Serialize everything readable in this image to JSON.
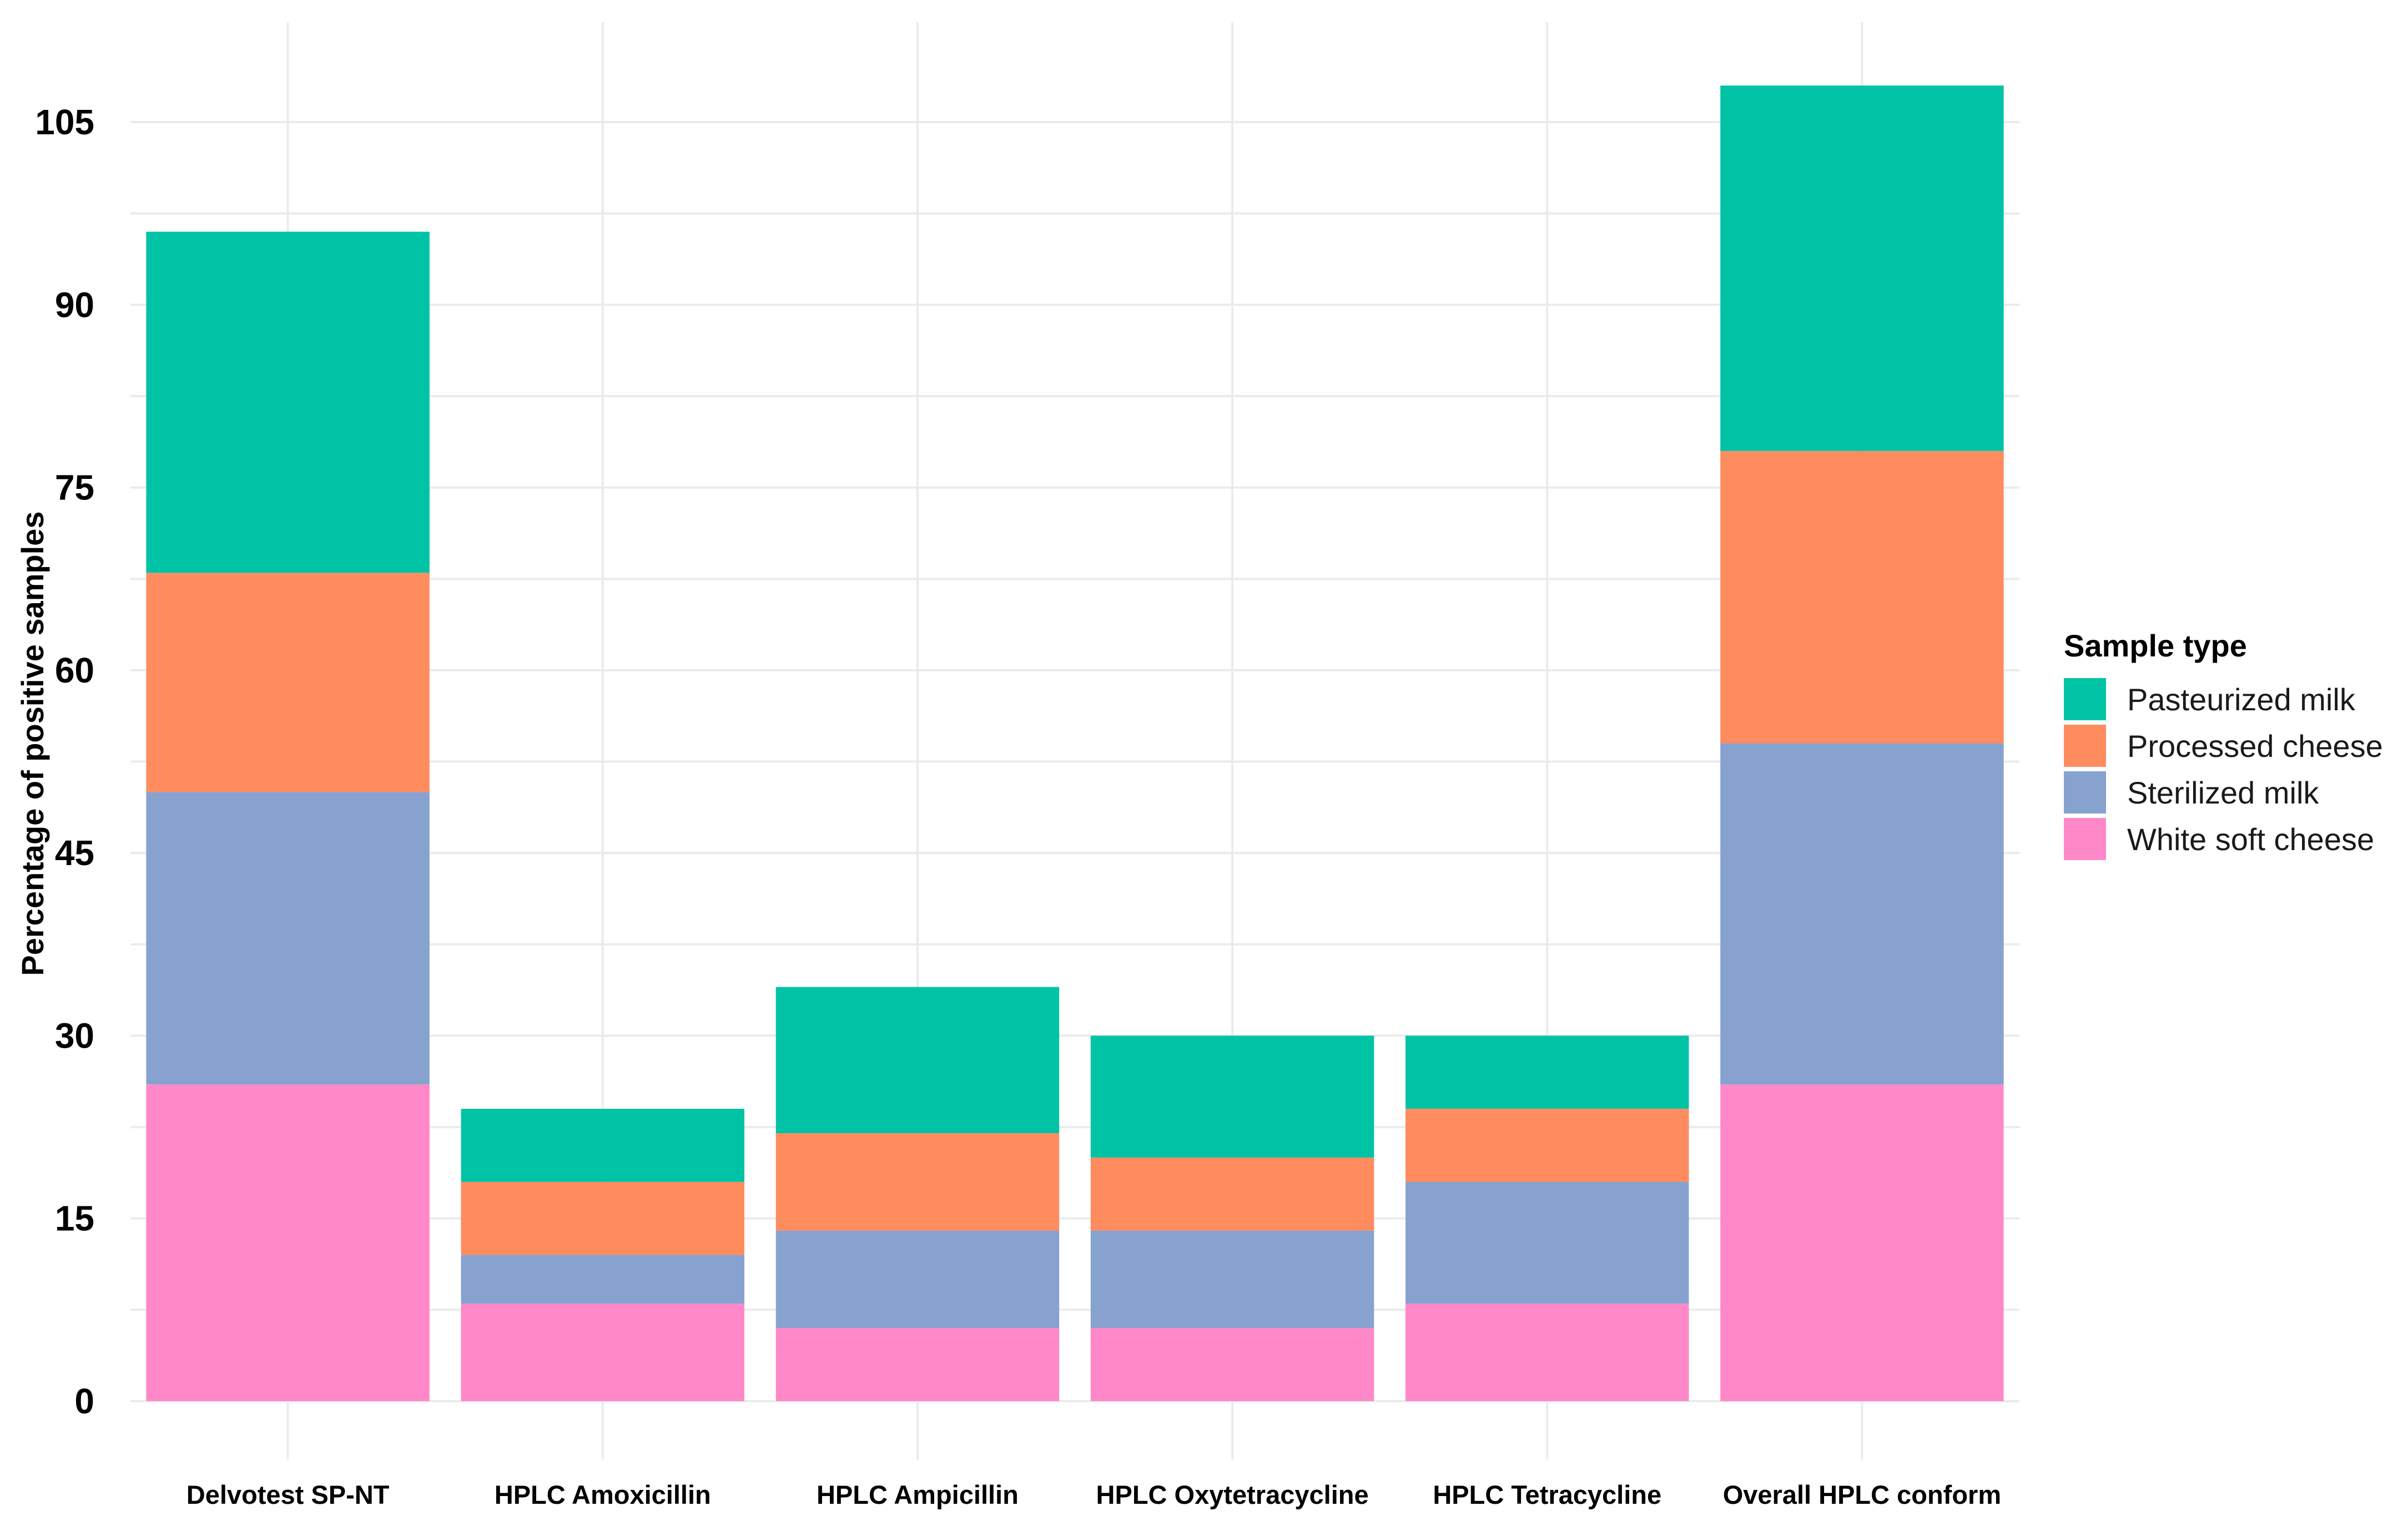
{
  "chart_data": {
    "type": "bar",
    "stacked": true,
    "title": "",
    "xlabel": "",
    "ylabel": "Percentage of positive samples",
    "ylim": [
      0,
      112
    ],
    "yticks": [
      0,
      15,
      30,
      45,
      60,
      75,
      90,
      105
    ],
    "grid": true,
    "categories": [
      "Delvotest SP-NT",
      "HPLC Amoxicillin",
      "HPLC Ampicillin",
      "HPLC Oxytetracycline",
      "HPLC Tetracycline",
      "Overall HPLC conform"
    ],
    "series": [
      {
        "name": "White soft cheese",
        "color": "#ff88c8",
        "values": [
          26,
          8,
          6,
          6,
          8,
          26
        ]
      },
      {
        "name": "Sterilized milk",
        "color": "#87a2cf",
        "values": [
          24,
          4,
          8,
          8,
          10,
          28
        ]
      },
      {
        "name": "Processed cheese",
        "color": "#fe8c5f",
        "values": [
          18,
          6,
          8,
          6,
          6,
          24
        ]
      },
      {
        "name": "Pasteurized milk",
        "color": "#00c3a5",
        "values": [
          28,
          6,
          12,
          10,
          6,
          30
        ]
      }
    ],
    "legend": {
      "title": "Sample type",
      "position": "right",
      "entries": [
        "Pasteurized milk",
        "Processed cheese",
        "Sterilized milk",
        "White soft cheese"
      ]
    }
  }
}
